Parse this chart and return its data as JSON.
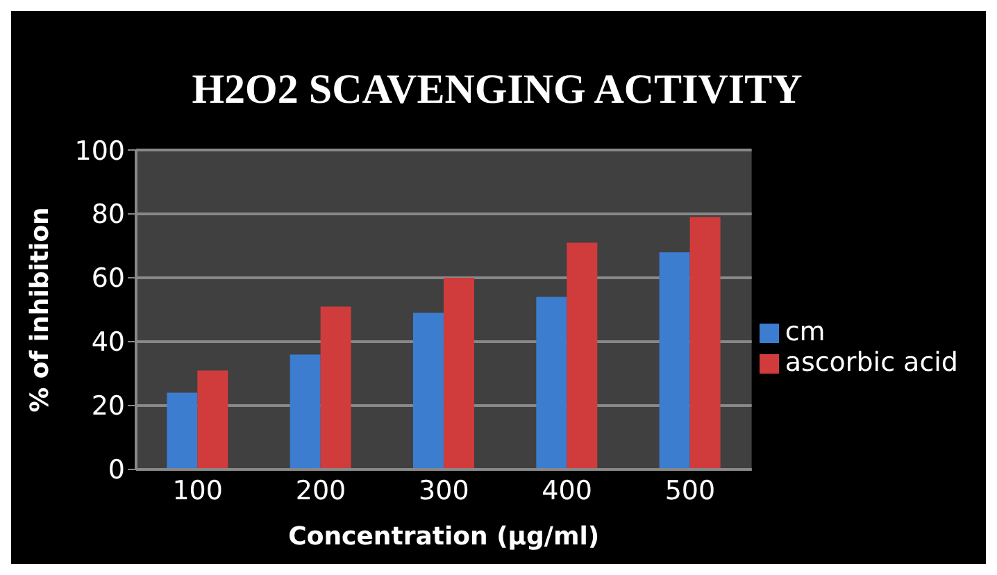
{
  "chart_data": {
    "type": "bar",
    "title": "H2O2 SCAVENGING ACTIVITY",
    "xlabel": "Concentration (µg/ml)",
    "ylabel": "% of inhibition",
    "categories": [
      "100",
      "200",
      "300",
      "400",
      "500"
    ],
    "series": [
      {
        "name": "cm",
        "color": "#3c7dd0",
        "values": [
          24,
          36,
          49,
          54,
          68
        ]
      },
      {
        "name": "ascorbic acid",
        "color": "#d03c3c",
        "values": [
          31,
          51,
          60,
          71,
          79
        ]
      }
    ],
    "ylim": [
      0,
      100
    ],
    "yticks": [
      0,
      20,
      40,
      60,
      80,
      100
    ],
    "grid": "y",
    "legend": "right"
  }
}
